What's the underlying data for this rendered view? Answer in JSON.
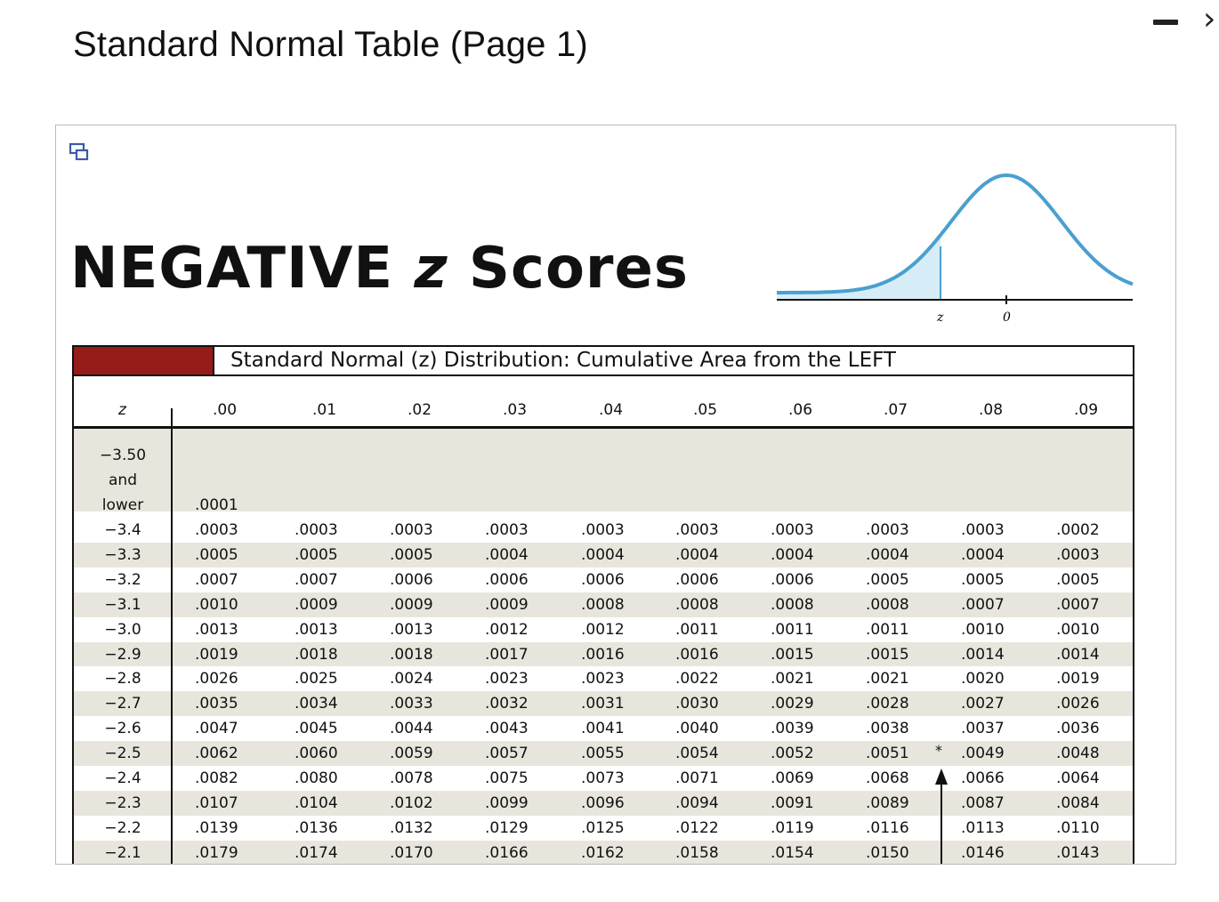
{
  "page_title": "Standard Normal Table (Page 1)",
  "window_controls": {
    "minimize": "minimize",
    "close": "›"
  },
  "heading": {
    "text1": "NEGATIVE ",
    "z": "z",
    "text2": " Scores"
  },
  "curve": {
    "z_label": "z",
    "zero_label": "0",
    "line_color": "#4a9fd0",
    "shade_color": "#d6edf7"
  },
  "table": {
    "header_accent_color": "#951c19",
    "title": "Standard Normal (z) Distribution: Cumulative Area from the LEFT",
    "z_header": "z",
    "columns": [
      ".00",
      ".01",
      ".02",
      ".03",
      ".04",
      ".05",
      ".06",
      ".07",
      ".08",
      ".09"
    ],
    "first_row": {
      "z_lines": [
        "−3.50",
        "and",
        "lower"
      ],
      "value": ".0001"
    },
    "rows": [
      {
        "z": "−3.4",
        "values": [
          ".0003",
          ".0003",
          ".0003",
          ".0003",
          ".0003",
          ".0003",
          ".0003",
          ".0003",
          ".0003",
          ".0002"
        ]
      },
      {
        "z": "−3.3",
        "values": [
          ".0005",
          ".0005",
          ".0005",
          ".0004",
          ".0004",
          ".0004",
          ".0004",
          ".0004",
          ".0004",
          ".0003"
        ]
      },
      {
        "z": "−3.2",
        "values": [
          ".0007",
          ".0007",
          ".0006",
          ".0006",
          ".0006",
          ".0006",
          ".0006",
          ".0005",
          ".0005",
          ".0005"
        ]
      },
      {
        "z": "−3.1",
        "values": [
          ".0010",
          ".0009",
          ".0009",
          ".0009",
          ".0008",
          ".0008",
          ".0008",
          ".0008",
          ".0007",
          ".0007"
        ]
      },
      {
        "z": "−3.0",
        "values": [
          ".0013",
          ".0013",
          ".0013",
          ".0012",
          ".0012",
          ".0011",
          ".0011",
          ".0011",
          ".0010",
          ".0010"
        ]
      },
      {
        "z": "−2.9",
        "values": [
          ".0019",
          ".0018",
          ".0018",
          ".0017",
          ".0016",
          ".0016",
          ".0015",
          ".0015",
          ".0014",
          ".0014"
        ]
      },
      {
        "z": "−2.8",
        "values": [
          ".0026",
          ".0025",
          ".0024",
          ".0023",
          ".0023",
          ".0022",
          ".0021",
          ".0021",
          ".0020",
          ".0019"
        ]
      },
      {
        "z": "−2.7",
        "values": [
          ".0035",
          ".0034",
          ".0033",
          ".0032",
          ".0031",
          ".0030",
          ".0029",
          ".0028",
          ".0027",
          ".0026"
        ]
      },
      {
        "z": "−2.6",
        "values": [
          ".0047",
          ".0045",
          ".0044",
          ".0043",
          ".0041",
          ".0040",
          ".0039",
          ".0038",
          ".0037",
          ".0036"
        ]
      },
      {
        "z": "−2.5",
        "values": [
          ".0062",
          ".0060",
          ".0059",
          ".0057",
          ".0055",
          ".0054",
          ".0052",
          ".0051",
          ".0049",
          ".0048"
        ]
      },
      {
        "z": "−2.4",
        "values": [
          ".0082",
          ".0080",
          ".0078",
          ".0075",
          ".0073",
          ".0071",
          ".0069",
          ".0068",
          ".0066",
          ".0064"
        ]
      },
      {
        "z": "−2.3",
        "values": [
          ".0107",
          ".0104",
          ".0102",
          ".0099",
          ".0096",
          ".0094",
          ".0091",
          ".0089",
          ".0087",
          ".0084"
        ]
      },
      {
        "z": "−2.2",
        "values": [
          ".0139",
          ".0136",
          ".0132",
          ".0129",
          ".0125",
          ".0122",
          ".0119",
          ".0116",
          ".0113",
          ".0110"
        ]
      },
      {
        "z": "−2.1",
        "values": [
          ".0179",
          ".0174",
          ".0170",
          ".0166",
          ".0162",
          ".0158",
          ".0154",
          ".0150",
          ".0146",
          ".0143"
        ]
      }
    ],
    "marker": "*"
  }
}
